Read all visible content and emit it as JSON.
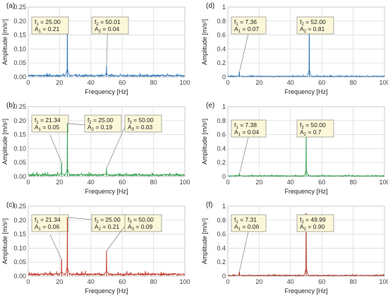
{
  "chart_data": [
    {
      "panel": "(a)",
      "type": "line",
      "xlabel": "Frequency [Hz]",
      "ylabel": "Amplitude [m/s²]",
      "xlim": [
        0,
        100
      ],
      "ylim": [
        0,
        0.25
      ],
      "xticks": [
        "0",
        "20",
        "40",
        "60",
        "80",
        "100"
      ],
      "yticks": [
        "0.00",
        "0.05",
        "0.10",
        "0.15",
        "0.20",
        "0.25"
      ],
      "grid": true,
      "color": "#2e75b6",
      "noise_level": 0.006,
      "peaks": [
        {
          "x": 25.0,
          "y": 0.21,
          "f": "f",
          "sub": "1",
          "fval": " = 25.00",
          "a": "A",
          "aval": " = 0.21"
        },
        {
          "x": 50.01,
          "y": 0.04,
          "f": "f",
          "sub": "2",
          "fval": " = 50.01",
          "a": "A",
          "aval": " = 0.04"
        }
      ]
    },
    {
      "panel": "(b)",
      "type": "line",
      "xlabel": "Frequency [Hz]",
      "ylabel": "Amplitude [m/s²]",
      "xlim": [
        0,
        100
      ],
      "ylim": [
        0,
        0.25
      ],
      "xticks": [
        "0",
        "20",
        "40",
        "60",
        "80",
        "100"
      ],
      "yticks": [
        "0.00",
        "0.05",
        "0.10",
        "0.15",
        "0.20",
        "0.25"
      ],
      "grid": true,
      "color": "#2e9e4a",
      "noise_level": 0.007,
      "peaks": [
        {
          "x": 21.34,
          "y": 0.05,
          "f": "f",
          "sub": "1",
          "fval": " = 21.34",
          "a": "A",
          "aval": " = 0.05"
        },
        {
          "x": 25.0,
          "y": 0.19,
          "f": "f",
          "sub": "2",
          "fval": " = 25.00",
          "a": "A",
          "aval": " = 0.19"
        },
        {
          "x": 50.0,
          "y": 0.03,
          "f": "f",
          "sub": "3",
          "fval": " = 50.00",
          "a": "A",
          "aval": " = 0.03"
        }
      ]
    },
    {
      "panel": "(c)",
      "type": "line",
      "xlabel": "Frequency [Hz]",
      "ylabel": "Amplitude [m/s²]",
      "xlim": [
        0,
        100
      ],
      "ylim": [
        0,
        0.25
      ],
      "xticks": [
        "0",
        "20",
        "40",
        "60",
        "80",
        "100"
      ],
      "yticks": [
        "0.00",
        "0.05",
        "0.10",
        "0.15",
        "0.20",
        "0.25"
      ],
      "grid": true,
      "color": "#c0392b",
      "noise_level": 0.008,
      "peaks": [
        {
          "x": 21.34,
          "y": 0.06,
          "f": "f",
          "sub": "1",
          "fval": " = 21.34",
          "a": "A",
          "aval": " = 0.06"
        },
        {
          "x": 25.0,
          "y": 0.21,
          "f": "f",
          "sub": "2",
          "fval": " = 25.00",
          "a": "A",
          "aval": " = 0.21"
        },
        {
          "x": 50.0,
          "y": 0.09,
          "f": "f",
          "sub": "3",
          "fval": " = 50.00",
          "a": "A",
          "aval": " = 0.09"
        }
      ]
    },
    {
      "panel": "(d)",
      "type": "line",
      "xlabel": "Frequency [Hz]",
      "ylabel": "Amplitude [m/s²]",
      "xlim": [
        0,
        100
      ],
      "ylim": [
        0,
        1
      ],
      "xticks": [
        "0",
        "20",
        "40",
        "60",
        "80",
        "100"
      ],
      "yticks": [
        "0",
        "0.2",
        "0.4",
        "0.6",
        "0.8",
        "1"
      ],
      "grid": true,
      "color": "#2e75b6",
      "noise_level": 0.012,
      "peaks": [
        {
          "x": 7.36,
          "y": 0.07,
          "f": "f",
          "sub": "1",
          "fval": " = 7.36",
          "a": "A",
          "aval": " = 0.07"
        },
        {
          "x": 52.0,
          "y": 0.81,
          "f": "f",
          "sub": "2",
          "fval": " = 52.00",
          "a": "A",
          "aval": " = 0.81"
        }
      ]
    },
    {
      "panel": "(e)",
      "type": "line",
      "xlabel": "Frequency [Hz]",
      "ylabel": "Amplitude [m/s²]",
      "xlim": [
        0,
        100
      ],
      "ylim": [
        0,
        1
      ],
      "xticks": [
        "0",
        "20",
        "40",
        "60",
        "80",
        "100"
      ],
      "yticks": [
        "0",
        "0.2",
        "0.4",
        "0.6",
        "0.8",
        "1"
      ],
      "grid": true,
      "color": "#2e9e4a",
      "noise_level": 0.012,
      "peaks": [
        {
          "x": 7.38,
          "y": 0.04,
          "f": "f",
          "sub": "1",
          "fval": " = 7.38",
          "a": "A",
          "aval": " = 0.04"
        },
        {
          "x": 50.0,
          "y": 0.7,
          "f": "f",
          "sub": "2",
          "fval": " = 50.00",
          "a": "A",
          "aval": " = 0.7"
        }
      ]
    },
    {
      "panel": "(f)",
      "type": "line",
      "xlabel": "Frequency [Hz]",
      "ylabel": "Amplitude [m/s²]",
      "xlim": [
        0,
        100
      ],
      "ylim": [
        0,
        1
      ],
      "xticks": [
        "0",
        "20",
        "40",
        "60",
        "80",
        "100"
      ],
      "yticks": [
        "0",
        "0.2",
        "0.4",
        "0.6",
        "0.8",
        "1"
      ],
      "grid": true,
      "color": "#a52a1a",
      "noise_level": 0.012,
      "peaks": [
        {
          "x": 7.31,
          "y": 0.06,
          "f": "f",
          "sub": "1",
          "fval": " = 7.31",
          "a": "A",
          "aval": " = 0.06"
        },
        {
          "x": 49.99,
          "y": 0.9,
          "f": "f",
          "sub": "2",
          "fval": " = 49.99",
          "a": "A",
          "aval": " = 0.90"
        }
      ]
    }
  ]
}
